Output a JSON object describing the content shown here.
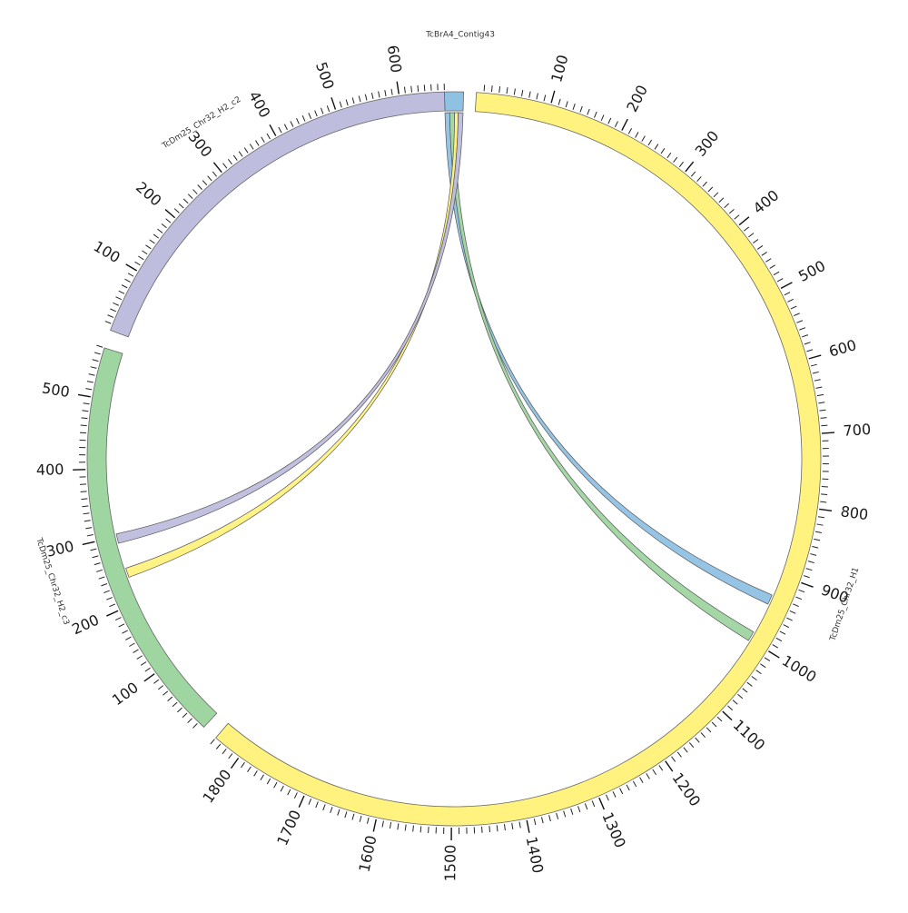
{
  "diagram": {
    "type": "circos",
    "tick_step": 100,
    "minor_tick_step": 10,
    "segments": [
      {
        "id": "contig43",
        "label": "TcBrA4_Contig43",
        "length": 15,
        "color": "#8fc1e3",
        "ticks": []
      },
      {
        "id": "h1",
        "label": "TcDm25_Chr32_H1",
        "length": 1840,
        "color": "#fff27f",
        "ticks": [
          "100",
          "200",
          "300",
          "400",
          "500",
          "600",
          "700",
          "800",
          "900",
          "1000",
          "1100",
          "1200",
          "1300",
          "1400",
          "1500",
          "1600",
          "1700",
          "1800"
        ]
      },
      {
        "id": "h2c3",
        "label": "TcDm25_Chr32_H2_c3",
        "length": 570,
        "color": "#9fd5a0",
        "ticks": [
          "100",
          "200",
          "300",
          "400",
          "500"
        ]
      },
      {
        "id": "h2c2",
        "label": "TcDm25_Chr32_H2_c2",
        "length": 670,
        "color": "#bfbddd",
        "ticks": [
          "100",
          "200",
          "300",
          "400",
          "500",
          "600"
        ]
      }
    ],
    "links": [
      {
        "source": "contig43",
        "source_range": [
          0,
          4
        ],
        "target": "h1",
        "target_range": [
          930,
          944
        ],
        "color": "#8fc1e3"
      },
      {
        "source": "contig43",
        "source_range": [
          4,
          8
        ],
        "target": "h1",
        "target_range": [
          988,
          1002
        ],
        "color": "#9fd5a0"
      },
      {
        "source": "contig43",
        "source_range": [
          8,
          11
        ],
        "target": "h2c3",
        "target_range": [
          238,
          252
        ],
        "color": "#fff27f"
      },
      {
        "source": "contig43",
        "source_range": [
          11,
          15
        ],
        "target": "h2c3",
        "target_range": [
          290,
          304
        ],
        "color": "#bfbddd"
      }
    ]
  }
}
